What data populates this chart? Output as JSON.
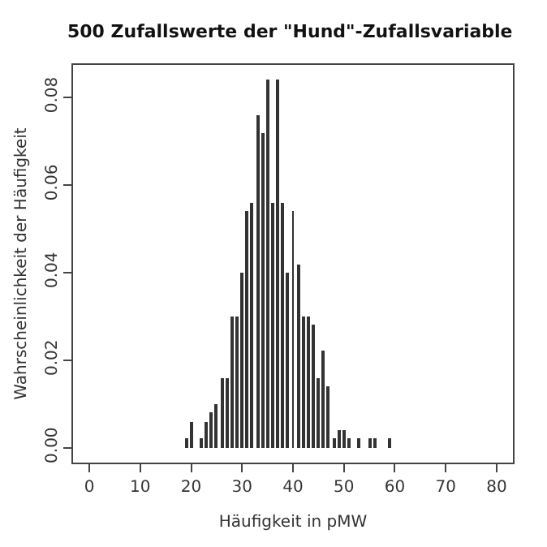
{
  "chart_data": {
    "type": "bar",
    "title": "500 Zufallswerte der \"Hund\"-Zufallsvariable",
    "xlabel": "Häufigkeit in pMW",
    "ylabel": "Wahrscheinlichkeit der Häufigkeit",
    "x": [
      19,
      20,
      22,
      23,
      24,
      25,
      26,
      27,
      28,
      29,
      30,
      31,
      32,
      33,
      34,
      35,
      36,
      37,
      38,
      39,
      40,
      41,
      42,
      43,
      44,
      45,
      46,
      47,
      48,
      49,
      50,
      51,
      53,
      55,
      56,
      59
    ],
    "values": [
      0.002,
      0.006,
      0.002,
      0.006,
      0.008,
      0.01,
      0.016,
      0.016,
      0.03,
      0.03,
      0.04,
      0.054,
      0.056,
      0.076,
      0.072,
      0.084,
      0.056,
      0.084,
      0.056,
      0.04,
      0.054,
      0.042,
      0.03,
      0.03,
      0.028,
      0.016,
      0.022,
      0.014,
      0.002,
      0.004,
      0.004,
      0.002,
      0.002,
      0.002,
      0.002,
      0.002
    ],
    "color": "#333333",
    "xlim": [
      -3.2,
      83.2
    ],
    "xticks": [
      0,
      10,
      20,
      30,
      40,
      50,
      60,
      70,
      80
    ],
    "ylim": [
      -0.0034,
      0.0874
    ],
    "yticks": [
      {
        "value": 0,
        "label": "0.00"
      },
      {
        "value": 0.02,
        "label": "0.02"
      },
      {
        "value": 0.04,
        "label": "0.04"
      },
      {
        "value": 0.06,
        "label": "0.06"
      },
      {
        "value": 0.08,
        "label": "0.08"
      }
    ]
  }
}
